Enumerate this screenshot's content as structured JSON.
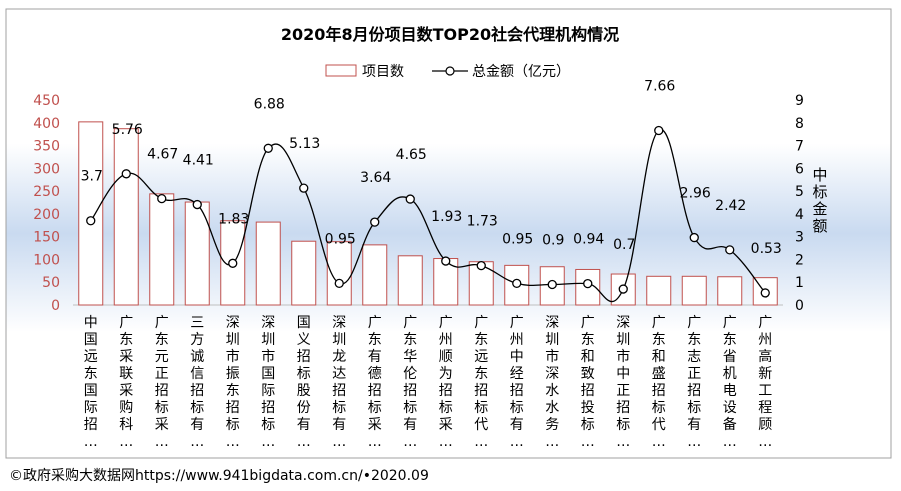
{
  "chart_data": {
    "type": "bar+line",
    "title": "2020年8月份项目数TOP20社会代理机构情况",
    "legend": {
      "bar_label": "项目数",
      "line_label": "总金额（亿元）",
      "placement": "top"
    },
    "categories": [
      "中国远东国际招…",
      "广东采联采购科…",
      "广东元正招标采…",
      "三方诚信招标有…",
      "深圳市振东招标…",
      "深圳市国际招标…",
      "国义招标股份有…",
      "深圳龙达招标有…",
      "广东有德招标采…",
      "广东华伦招标有…",
      "广州顺为招标采…",
      "广东远东招标代…",
      "广州中经招标有…",
      "深圳市深水水务…",
      "广东和致招投标…",
      "深圳市中正招标…",
      "广东和盛招标代…",
      "广东志正招标有…",
      "广东省机电设备…",
      "广州高新工程顾…"
    ],
    "series": [
      {
        "name": "项目数",
        "axis": "left",
        "kind": "bar",
        "values": [
          402,
          387,
          244,
          226,
          185,
          182,
          140,
          139,
          132,
          108,
          102,
          95,
          87,
          84,
          78,
          68,
          63,
          63,
          62,
          60
        ]
      },
      {
        "name": "总金额（亿元）",
        "axis": "right",
        "kind": "line",
        "values": [
          3.7,
          5.76,
          4.67,
          4.41,
          1.83,
          6.88,
          5.13,
          0.95,
          3.64,
          4.65,
          1.93,
          1.73,
          0.95,
          0.9,
          0.94,
          0.7,
          7.66,
          2.96,
          2.42,
          0.53
        ],
        "labels": [
          "3.7",
          "5.76",
          "4.67",
          "4.41",
          "1.83",
          "6.88",
          "5.13",
          "0.95",
          "3.64",
          "4.65",
          "1.93",
          "1.73",
          "0.95",
          "0.9",
          "0.94",
          "0.7",
          "7.66",
          "2.96",
          "2.42",
          "0.53"
        ]
      }
    ],
    "left_axis": {
      "min": 0,
      "max": 450,
      "step": 50,
      "ticks": [
        "0",
        "50",
        "100",
        "150",
        "200",
        "250",
        "300",
        "350",
        "400",
        "450"
      ]
    },
    "right_axis": {
      "label": "中标金额",
      "min": 0,
      "max": 9,
      "step": 1,
      "ticks": [
        "0",
        "1",
        "2",
        "3",
        "4",
        "5",
        "6",
        "7",
        "8",
        "9"
      ]
    },
    "colors": {
      "bar_edge": "#c0504d",
      "bar_fill": "#ffffff",
      "line": "#000000",
      "left_axis_text": "#c0504d",
      "background_band": "#c9daf0",
      "border": "#a0a0a0"
    }
  },
  "footer": {
    "source": "©政府采购大数据网https://www.941bigdata.com.cn/•2020.09"
  }
}
